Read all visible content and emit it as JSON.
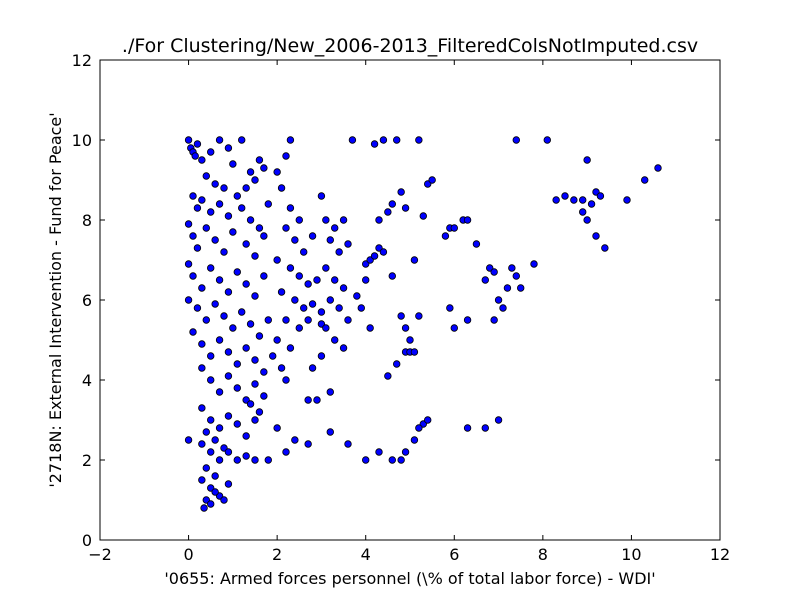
{
  "chart_data": {
    "type": "scatter",
    "title": "./For Clustering/New_2006-2013_FilteredColsNotImputed.csv",
    "xlabel": "'0655: Armed forces personnel  (\\% of total labor force) - WDI'",
    "ylabel": "'2718N: External Intervention - Fund for Peace'",
    "xlim": [
      -2,
      12
    ],
    "ylim": [
      0,
      12
    ],
    "xticks": [
      -2,
      0,
      2,
      4,
      6,
      8,
      10,
      12
    ],
    "yticks": [
      0,
      2,
      4,
      6,
      8,
      10,
      12
    ],
    "grid": false,
    "marker_color": "#0000ff",
    "marker_edge_color": "#000000",
    "points": [
      [
        0.0,
        10.0
      ],
      [
        0.05,
        9.8
      ],
      [
        0.1,
        9.7
      ],
      [
        0.15,
        9.6
      ],
      [
        0.3,
        9.5
      ],
      [
        0.2,
        9.9
      ],
      [
        0.5,
        9.7
      ],
      [
        0.7,
        10.0
      ],
      [
        0.9,
        9.8
      ],
      [
        1.0,
        9.4
      ],
      [
        1.2,
        10.0
      ],
      [
        1.4,
        9.2
      ],
      [
        1.6,
        9.5
      ],
      [
        0.4,
        9.1
      ],
      [
        0.6,
        8.9
      ],
      [
        0.8,
        8.8
      ],
      [
        1.1,
        8.6
      ],
      [
        1.3,
        8.8
      ],
      [
        1.5,
        9.0
      ],
      [
        1.7,
        9.3
      ],
      [
        0.1,
        8.6
      ],
      [
        0.2,
        8.3
      ],
      [
        0.3,
        8.5
      ],
      [
        0.5,
        8.2
      ],
      [
        0.7,
        8.4
      ],
      [
        0.9,
        8.1
      ],
      [
        1.2,
        8.3
      ],
      [
        1.4,
        8.0
      ],
      [
        1.6,
        7.8
      ],
      [
        1.8,
        8.4
      ],
      [
        0.0,
        7.9
      ],
      [
        0.1,
        7.6
      ],
      [
        0.2,
        7.3
      ],
      [
        0.4,
        7.8
      ],
      [
        0.6,
        7.5
      ],
      [
        0.8,
        7.2
      ],
      [
        1.0,
        7.7
      ],
      [
        1.3,
        7.4
      ],
      [
        1.5,
        7.1
      ],
      [
        1.7,
        7.6
      ],
      [
        0.0,
        6.9
      ],
      [
        0.1,
        6.6
      ],
      [
        0.3,
        6.3
      ],
      [
        0.5,
        6.8
      ],
      [
        0.7,
        6.5
      ],
      [
        0.9,
        6.2
      ],
      [
        1.1,
        6.7
      ],
      [
        1.3,
        6.4
      ],
      [
        1.5,
        6.1
      ],
      [
        1.7,
        6.6
      ],
      [
        0.0,
        6.0
      ],
      [
        0.2,
        5.8
      ],
      [
        0.4,
        5.5
      ],
      [
        0.6,
        5.9
      ],
      [
        0.8,
        5.6
      ],
      [
        1.0,
        5.3
      ],
      [
        1.2,
        5.7
      ],
      [
        1.4,
        5.4
      ],
      [
        1.6,
        5.1
      ],
      [
        1.8,
        5.5
      ],
      [
        0.1,
        5.2
      ],
      [
        0.3,
        4.9
      ],
      [
        0.5,
        4.6
      ],
      [
        0.7,
        5.0
      ],
      [
        0.9,
        4.7
      ],
      [
        1.1,
        4.4
      ],
      [
        1.3,
        4.8
      ],
      [
        1.5,
        4.5
      ],
      [
        1.7,
        4.2
      ],
      [
        1.9,
        4.6
      ],
      [
        0.3,
        4.3
      ],
      [
        0.5,
        4.0
      ],
      [
        0.7,
        3.7
      ],
      [
        0.9,
        4.1
      ],
      [
        1.1,
        3.8
      ],
      [
        1.3,
        3.5
      ],
      [
        1.5,
        3.9
      ],
      [
        1.7,
        3.6
      ],
      [
        1.6,
        3.2
      ],
      [
        1.4,
        3.4
      ],
      [
        0.3,
        3.3
      ],
      [
        0.5,
        3.0
      ],
      [
        0.7,
        2.8
      ],
      [
        0.9,
        3.1
      ],
      [
        1.1,
        2.9
      ],
      [
        1.3,
        2.6
      ],
      [
        1.5,
        3.0
      ],
      [
        0.4,
        2.7
      ],
      [
        0.6,
        2.5
      ],
      [
        0.8,
        2.3
      ],
      [
        0.3,
        2.4
      ],
      [
        0.5,
        2.2
      ],
      [
        0.7,
        2.0
      ],
      [
        0.9,
        2.2
      ],
      [
        1.1,
        2.0
      ],
      [
        1.3,
        2.1
      ],
      [
        1.5,
        2.0
      ],
      [
        1.8,
        2.0
      ],
      [
        0.4,
        1.8
      ],
      [
        0.6,
        1.6
      ],
      [
        0.3,
        1.5
      ],
      [
        0.5,
        1.3
      ],
      [
        0.7,
        1.1
      ],
      [
        0.9,
        1.4
      ],
      [
        0.4,
        1.0
      ],
      [
        0.5,
        0.9
      ],
      [
        0.35,
        0.8
      ],
      [
        0.6,
        1.2
      ],
      [
        0.8,
        1.0
      ],
      [
        0.0,
        2.5
      ],
      [
        2.0,
        9.2
      ],
      [
        2.2,
        9.6
      ],
      [
        2.3,
        10.0
      ],
      [
        2.1,
        8.8
      ],
      [
        2.3,
        8.3
      ],
      [
        2.5,
        8.0
      ],
      [
        2.2,
        7.8
      ],
      [
        2.4,
        7.5
      ],
      [
        2.6,
        7.2
      ],
      [
        2.8,
        7.6
      ],
      [
        2.0,
        7.0
      ],
      [
        2.3,
        6.8
      ],
      [
        2.5,
        6.6
      ],
      [
        2.7,
        6.4
      ],
      [
        2.9,
        6.5
      ],
      [
        2.1,
        6.2
      ],
      [
        2.4,
        6.0
      ],
      [
        2.6,
        5.8
      ],
      [
        2.8,
        5.9
      ],
      [
        3.0,
        5.7
      ],
      [
        2.2,
        5.5
      ],
      [
        2.5,
        5.3
      ],
      [
        2.7,
        5.5
      ],
      [
        3.0,
        5.4
      ],
      [
        2.0,
        5.0
      ],
      [
        2.3,
        4.8
      ],
      [
        2.1,
        4.3
      ],
      [
        2.2,
        4.0
      ],
      [
        2.8,
        4.3
      ],
      [
        2.7,
        3.5
      ],
      [
        2.4,
        2.5
      ],
      [
        2.7,
        2.4
      ],
      [
        2.9,
        3.5
      ],
      [
        2.0,
        2.8
      ],
      [
        2.2,
        2.2
      ],
      [
        3.0,
        8.6
      ],
      [
        3.1,
        8.0
      ],
      [
        3.3,
        7.8
      ],
      [
        3.5,
        8.0
      ],
      [
        3.2,
        7.5
      ],
      [
        3.4,
        7.2
      ],
      [
        3.6,
        7.4
      ],
      [
        3.1,
        6.8
      ],
      [
        3.3,
        6.5
      ],
      [
        3.5,
        6.3
      ],
      [
        3.2,
        6.0
      ],
      [
        3.4,
        5.8
      ],
      [
        3.6,
        5.5
      ],
      [
        3.1,
        5.3
      ],
      [
        3.3,
        5.0
      ],
      [
        3.5,
        4.8
      ],
      [
        3.0,
        4.6
      ],
      [
        3.2,
        3.7
      ],
      [
        3.2,
        2.7
      ],
      [
        3.6,
        2.4
      ],
      [
        3.7,
        10.0
      ],
      [
        3.9,
        5.8
      ],
      [
        3.8,
        6.1
      ],
      [
        4.0,
        6.9
      ],
      [
        4.1,
        7.0
      ],
      [
        4.2,
        7.1
      ],
      [
        4.3,
        7.3
      ],
      [
        4.0,
        6.5
      ],
      [
        4.1,
        5.3
      ],
      [
        4.2,
        9.9
      ],
      [
        4.3,
        8.0
      ],
      [
        4.4,
        10.0
      ],
      [
        4.5,
        8.2
      ],
      [
        4.4,
        7.2
      ],
      [
        4.6,
        8.4
      ],
      [
        4.7,
        10.0
      ],
      [
        4.8,
        8.7
      ],
      [
        4.9,
        8.3
      ],
      [
        4.6,
        6.6
      ],
      [
        4.7,
        4.4
      ],
      [
        4.8,
        5.6
      ],
      [
        4.9,
        4.7
      ],
      [
        5.0,
        4.7
      ],
      [
        5.1,
        7.0
      ],
      [
        5.2,
        5.6
      ],
      [
        5.3,
        8.1
      ],
      [
        5.2,
        10.0
      ],
      [
        5.4,
        8.9
      ],
      [
        5.5,
        9.0
      ],
      [
        4.5,
        4.1
      ],
      [
        4.9,
        5.3
      ],
      [
        5.0,
        5.0
      ],
      [
        5.1,
        4.7
      ],
      [
        4.0,
        2.0
      ],
      [
        4.3,
        2.2
      ],
      [
        4.6,
        2.0
      ],
      [
        4.8,
        2.0
      ],
      [
        4.9,
        2.2
      ],
      [
        5.1,
        2.5
      ],
      [
        5.3,
        2.9
      ],
      [
        5.4,
        3.0
      ],
      [
        5.2,
        2.8
      ],
      [
        5.8,
        7.6
      ],
      [
        5.9,
        7.8
      ],
      [
        6.0,
        7.8
      ],
      [
        6.2,
        8.0
      ],
      [
        6.3,
        8.0
      ],
      [
        6.5,
        7.4
      ],
      [
        5.9,
        5.8
      ],
      [
        6.0,
        5.3
      ],
      [
        6.3,
        5.5
      ],
      [
        6.7,
        6.5
      ],
      [
        6.8,
        6.8
      ],
      [
        6.9,
        6.7
      ],
      [
        7.0,
        6.0
      ],
      [
        7.1,
        5.8
      ],
      [
        6.9,
        5.5
      ],
      [
        7.2,
        6.3
      ],
      [
        7.3,
        6.8
      ],
      [
        7.4,
        6.6
      ],
      [
        7.5,
        6.3
      ],
      [
        7.8,
        6.9
      ],
      [
        6.3,
        2.8
      ],
      [
        6.7,
        2.8
      ],
      [
        7.0,
        3.0
      ],
      [
        7.4,
        10.0
      ],
      [
        8.1,
        10.0
      ],
      [
        8.3,
        8.5
      ],
      [
        8.5,
        8.6
      ],
      [
        8.7,
        8.5
      ],
      [
        8.9,
        8.5
      ],
      [
        8.9,
        8.2
      ],
      [
        9.0,
        8.0
      ],
      [
        9.1,
        8.4
      ],
      [
        9.2,
        7.6
      ],
      [
        9.2,
        8.7
      ],
      [
        9.3,
        8.6
      ],
      [
        9.0,
        9.5
      ],
      [
        9.4,
        7.3
      ],
      [
        9.9,
        8.5
      ],
      [
        10.3,
        9.0
      ],
      [
        10.6,
        9.3
      ]
    ]
  }
}
